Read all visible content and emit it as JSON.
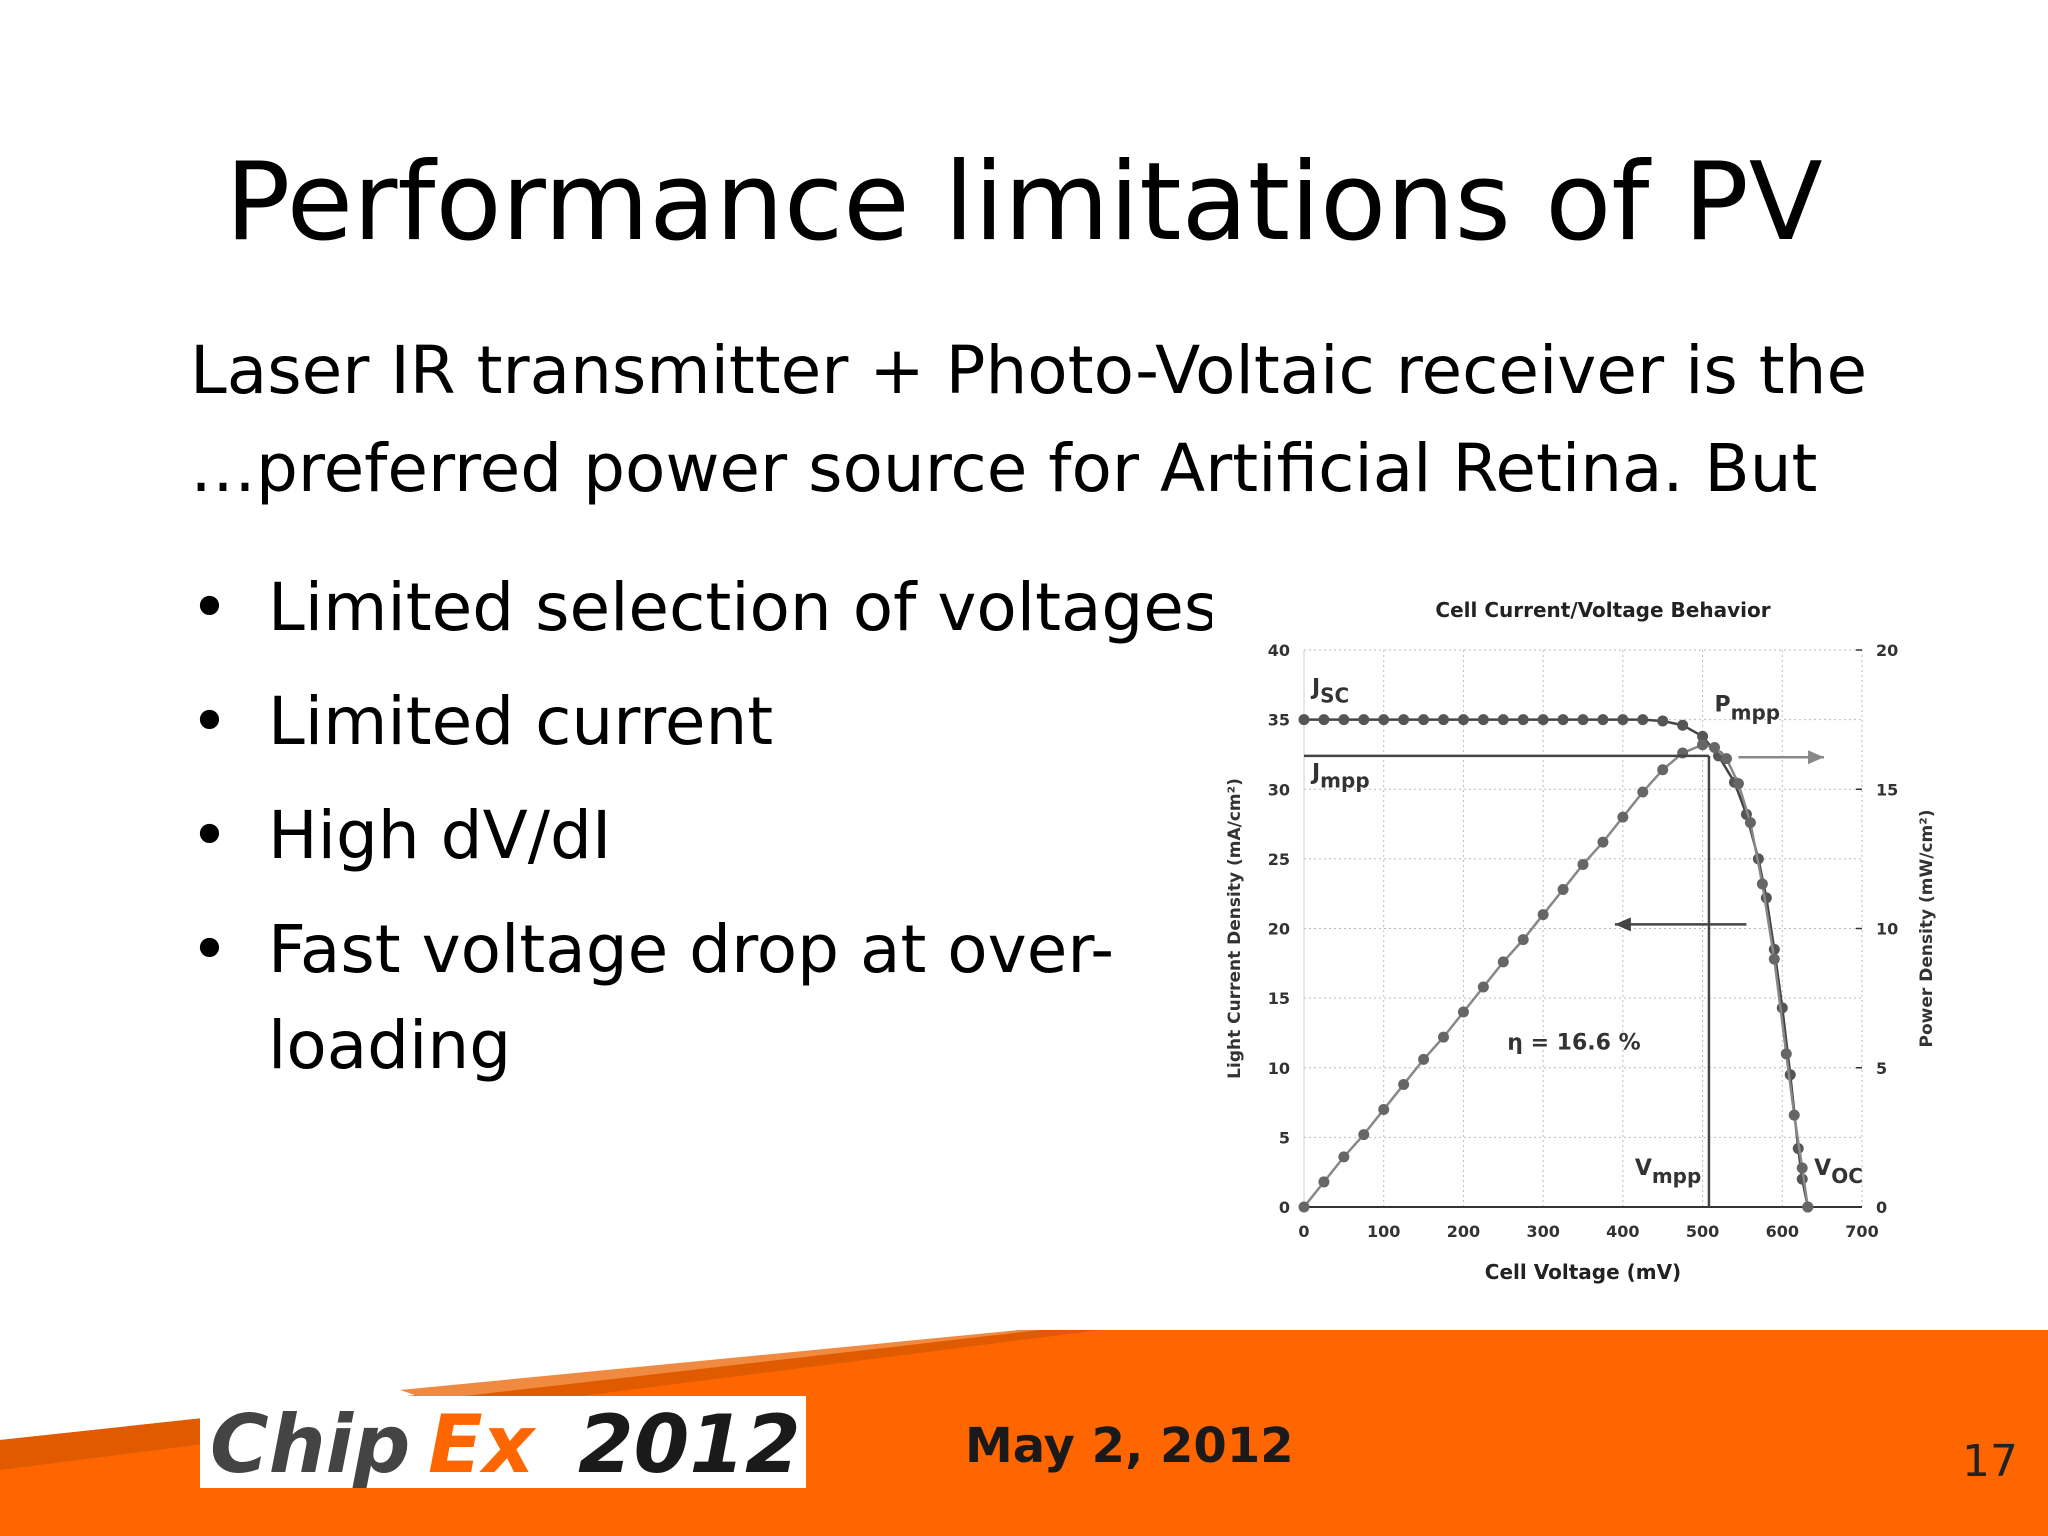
{
  "slide": {
    "title": "Performance limitations of PV",
    "intro_line1": "Laser IR transmitter + Photo-Voltaic receiver is the",
    "intro_line2": "…preferred power source for Artificial Retina. But",
    "bullets": [
      "Limited selection of voltages",
      "Limited current",
      "High dV/dI",
      "Fast voltage drop at over-loading"
    ],
    "bullet_symbol": "•"
  },
  "footer": {
    "logo_text_a": "Chip",
    "logo_text_b": "Ex",
    "logo_text_c": "2012",
    "date": "May 2, 2012",
    "page_number": "17",
    "colors": {
      "orange": "#FF6600",
      "dark_orange": "#E05A00",
      "logo_grey": "#555555"
    }
  },
  "chart_data": {
    "type": "line",
    "title": "Cell Current/Voltage Behavior",
    "xlabel": "Cell Voltage (mV)",
    "ylabel": "Light Current Density (mA/cm²)",
    "y2label": "Power Density (mW/cm²)",
    "xlim": [
      0,
      700
    ],
    "ylim": [
      0,
      40
    ],
    "y2lim": [
      0,
      20
    ],
    "xticks": [
      "0",
      "100",
      "200",
      "300",
      "400",
      "500",
      "600",
      "700"
    ],
    "yticks": [
      "0",
      "5",
      "10",
      "15",
      "20",
      "25",
      "30",
      "35",
      "40"
    ],
    "y2ticks": [
      "0",
      "5",
      "10",
      "15",
      "20"
    ],
    "grid": true,
    "series": [
      {
        "axis": "left",
        "x": [
          0,
          25,
          50,
          75,
          100,
          125,
          150,
          175,
          200,
          225,
          250,
          275,
          300,
          325,
          350,
          375,
          400,
          425,
          450,
          475,
          500,
          520,
          540,
          555,
          570,
          580,
          590,
          600,
          610,
          620,
          625,
          632
        ],
        "y": [
          35,
          35,
          35,
          35,
          35,
          35,
          35,
          35,
          35,
          35,
          35,
          35,
          35,
          35,
          35,
          35,
          35,
          35,
          34.9,
          34.6,
          33.8,
          32.4,
          30.5,
          28.2,
          25.0,
          22.2,
          18.5,
          14.3,
          9.5,
          4.2,
          2.0,
          0
        ]
      },
      {
        "axis": "right",
        "x": [
          0,
          25,
          50,
          75,
          100,
          125,
          150,
          175,
          200,
          225,
          250,
          275,
          300,
          325,
          350,
          375,
          400,
          425,
          450,
          475,
          500,
          515,
          530,
          545,
          560,
          575,
          590,
          605,
          615,
          625,
          632
        ],
        "y": [
          0,
          0.9,
          1.8,
          2.6,
          3.5,
          4.4,
          5.3,
          6.1,
          7.0,
          7.9,
          8.8,
          9.6,
          10.5,
          11.4,
          12.3,
          13.1,
          14.0,
          14.9,
          15.7,
          16.3,
          16.6,
          16.5,
          16.1,
          15.2,
          13.8,
          11.6,
          8.9,
          5.5,
          3.3,
          1.4,
          0
        ]
      }
    ],
    "annotations": {
      "jsc": "J",
      "jsc_sub": "SC",
      "pmpp": "P",
      "pmpp_sub": "mpp",
      "jmpp": "J",
      "jmpp_sub": "mpp",
      "vmpp": "V",
      "vmpp_sub": "mpp",
      "voc": "V",
      "voc_sub": "OC",
      "efficiency": "η = 16.6 %",
      "vmpp_value": 508,
      "jmpp_value": 32.4
    }
  }
}
